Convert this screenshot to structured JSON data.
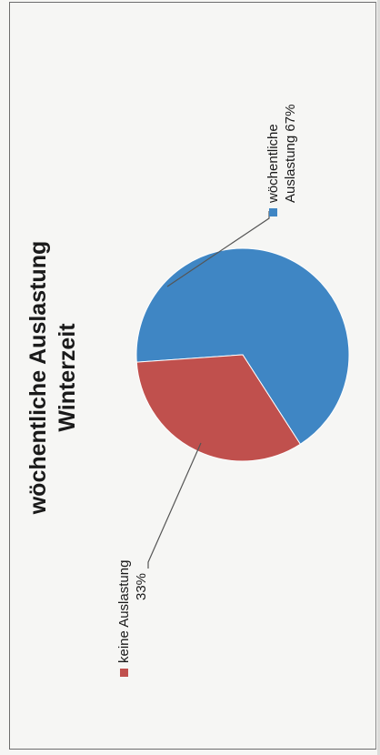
{
  "chart_data": {
    "type": "pie",
    "title": [
      "wöchentliche Auslastung",
      "Winterzeit"
    ],
    "slices": [
      {
        "name": "wöchentliche Auslastung",
        "label_lines": [
          "wöchentliche",
          "Auslastung 67%"
        ],
        "value": 67,
        "color": "#3f86c4"
      },
      {
        "name": "keine Auslastung",
        "label_lines": [
          "keine Auslastung",
          "33%"
        ],
        "value": 33,
        "color": "#c0504d"
      }
    ],
    "legend": "none",
    "data_labels": "outside-with-leader-lines"
  }
}
